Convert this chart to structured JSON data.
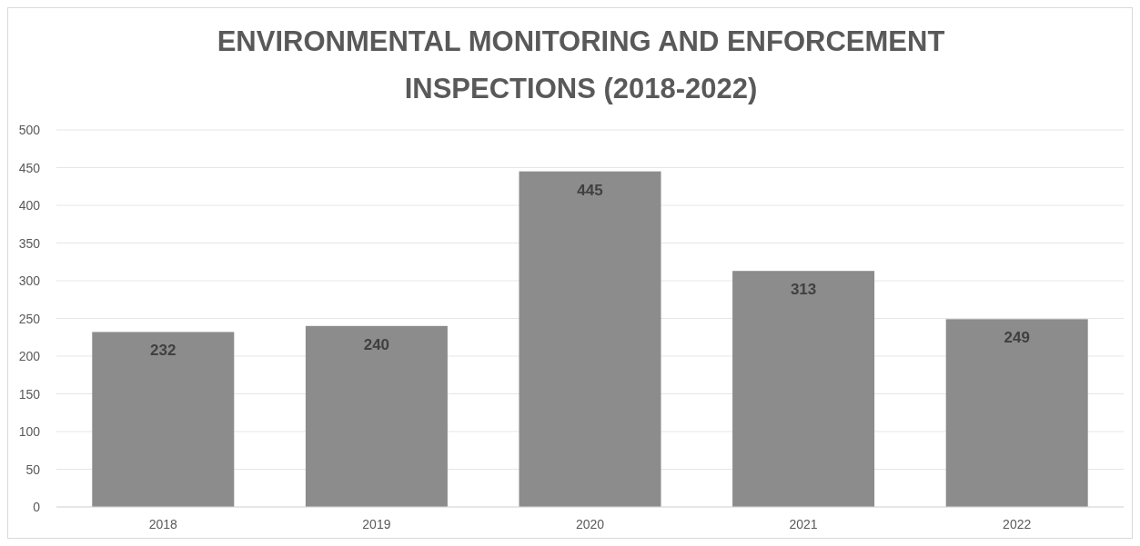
{
  "chart_data": {
    "type": "bar",
    "title": "ENVIRONMENTAL MONITORING AND ENFORCEMENT INSPECTIONS (2018-2022)",
    "categories": [
      "2018",
      "2019",
      "2020",
      "2021",
      "2022"
    ],
    "values": [
      232,
      240,
      445,
      313,
      249
    ],
    "color": "#8c8c8c",
    "ylim": [
      0,
      500
    ],
    "yticks": [
      0,
      50,
      100,
      150,
      200,
      250,
      300,
      350,
      400,
      450,
      500
    ],
    "grid": "y",
    "data_labels": true
  }
}
